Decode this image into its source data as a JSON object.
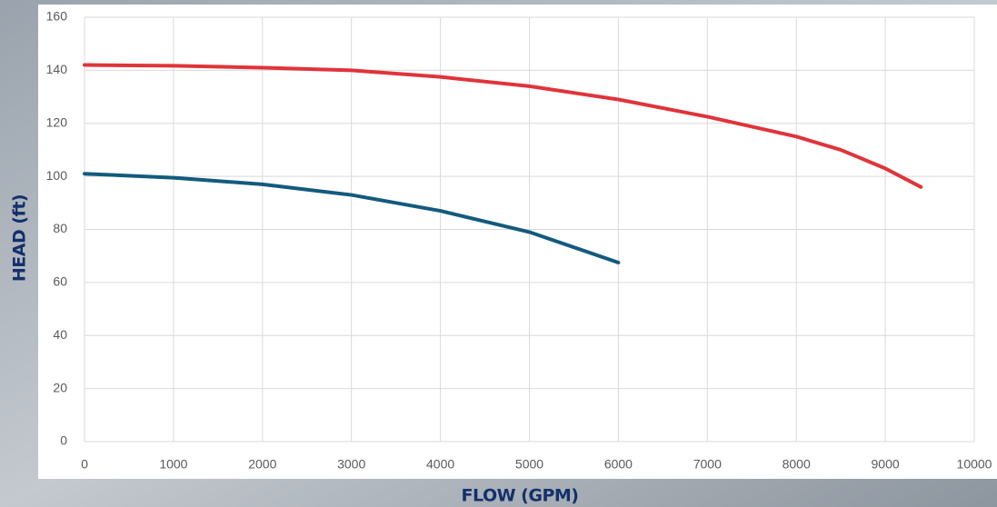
{
  "chart_data": {
    "type": "line",
    "xlabel": "FLOW (GPM)",
    "ylabel": "HEAD (ft)",
    "series": [
      {
        "color": "#e0343a",
        "x": [
          0,
          1000,
          2000,
          3000,
          4000,
          5000,
          6000,
          7000,
          8000,
          8500,
          9000,
          9400
        ],
        "values": [
          142,
          141.7,
          141,
          140,
          137.5,
          134,
          129,
          122.5,
          115,
          110,
          103,
          96
        ]
      },
      {
        "color": "#135a7e",
        "x": [
          0,
          1000,
          2000,
          3000,
          4000,
          5000,
          6000
        ],
        "values": [
          101,
          99.5,
          97,
          93,
          87,
          79,
          67.5
        ]
      }
    ],
    "xlim": [
      0,
      10000
    ],
    "xticks": [
      0,
      1000,
      2000,
      3000,
      4000,
      5000,
      6000,
      7000,
      8000,
      9000,
      10000
    ],
    "ylim": [
      0,
      160
    ],
    "yticks": [
      0,
      20,
      40,
      60,
      80,
      100,
      120,
      140,
      160
    ],
    "grid": true
  }
}
